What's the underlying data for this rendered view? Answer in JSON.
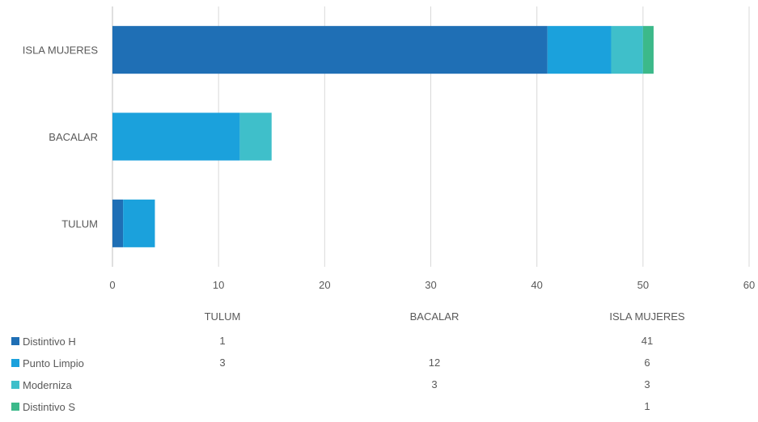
{
  "chart_data": {
    "type": "bar",
    "orientation": "horizontal",
    "stacked": true,
    "categories": [
      "TULUM",
      "BACALAR",
      "ISLA MUJERES"
    ],
    "series": [
      {
        "name": "Distintivo H",
        "color": "#1f6fb5",
        "values": [
          1,
          null,
          41
        ]
      },
      {
        "name": "Punto Limpio",
        "color": "#1ba1dc",
        "values": [
          3,
          12,
          6
        ]
      },
      {
        "name": "Moderniza",
        "color": "#3fbfca",
        "values": [
          null,
          3,
          3
        ]
      },
      {
        "name": "Distintivo S",
        "color": "#3cb98a",
        "values": [
          null,
          null,
          1
        ]
      }
    ],
    "xlim": [
      0,
      60
    ],
    "xticks": [
      0,
      10,
      20,
      30,
      40,
      50,
      60
    ],
    "grid": true,
    "data_table": true
  }
}
